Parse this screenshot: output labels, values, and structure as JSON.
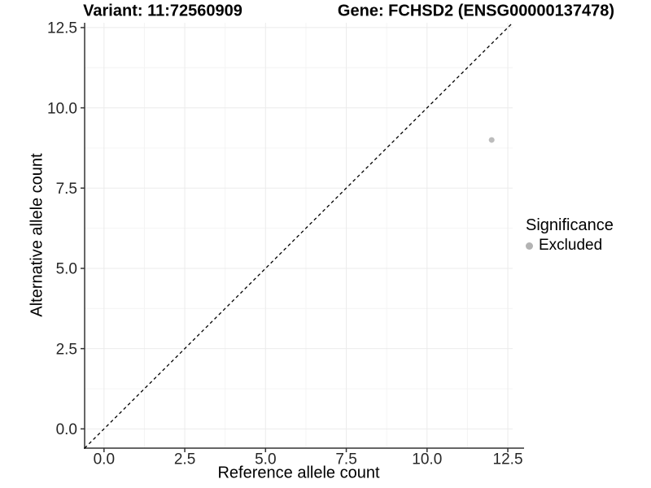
{
  "chart_data": {
    "type": "scatter",
    "title_left": "Variant: 11:72560909",
    "title_right": "Gene: FCHSD2 (ENSG00000137478)",
    "xlabel": "Reference allele count",
    "ylabel": "Alternative allele count",
    "xlim": [
      -0.6,
      12.65
    ],
    "ylim": [
      -0.6,
      12.65
    ],
    "x_ticks": {
      "values": [
        0,
        2.5,
        5,
        7.5,
        10,
        12.5
      ],
      "labels": [
        "0.0",
        "2.5",
        "5.0",
        "7.5",
        "10.0",
        "12.5"
      ]
    },
    "y_ticks": {
      "values": [
        0,
        2.5,
        5,
        7.5,
        10,
        12.5
      ],
      "labels": [
        "0.0",
        "2.5",
        "5.0",
        "7.5",
        "10.0",
        "12.5"
      ]
    },
    "minor_gridlines": [
      1.25,
      3.75,
      6.25,
      8.75,
      11.25
    ],
    "grid": true,
    "identity_line": {
      "slope": 1,
      "intercept": 0,
      "style": "dashed",
      "color": "#000000"
    },
    "series": [
      {
        "name": "Excluded",
        "color": "#bcbcbc",
        "points": [
          {
            "x": 12,
            "y": 9
          }
        ]
      }
    ],
    "legend": {
      "title": "Significance",
      "position": "right",
      "items": [
        {
          "label": "Excluded",
          "color": "#b3b3b3"
        }
      ]
    },
    "colors": {
      "background": "#ffffff",
      "grid_major": "#ebebeb",
      "grid_minor": "#f4f4f4",
      "axis_line": "#333333",
      "tick_mark": "#333333",
      "tick_label": "#262626",
      "title_text": "#000000"
    }
  }
}
